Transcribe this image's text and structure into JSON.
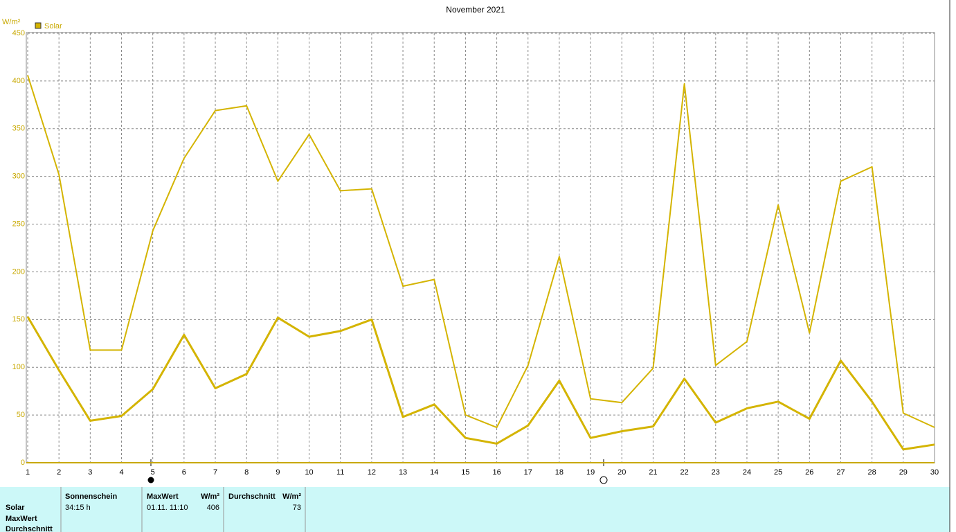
{
  "chart_data": {
    "type": "line",
    "title": "November 2021",
    "y_label": "W/m²",
    "x": [
      1,
      2,
      3,
      4,
      5,
      6,
      7,
      8,
      9,
      10,
      11,
      12,
      13,
      14,
      15,
      16,
      17,
      18,
      19,
      20,
      21,
      22,
      23,
      24,
      25,
      26,
      27,
      28,
      29,
      30
    ],
    "xlim": [
      1,
      30
    ],
    "xticks": [
      1,
      2,
      3,
      4,
      5,
      6,
      7,
      8,
      9,
      10,
      11,
      12,
      13,
      14,
      15,
      16,
      17,
      18,
      19,
      20,
      21,
      22,
      23,
      24,
      25,
      26,
      27,
      28,
      29,
      30
    ],
    "ylim": [
      0,
      450
    ],
    "yticks": [
      0,
      50,
      100,
      150,
      200,
      250,
      300,
      350,
      400,
      450
    ],
    "grid": true,
    "series": [
      {
        "name": "Solar",
        "color": "#d4b400",
        "values": [
          406,
          302,
          118,
          118,
          243,
          319,
          369,
          374,
          295,
          344,
          285,
          287,
          185,
          192,
          50,
          37,
          102,
          216,
          67,
          63,
          99,
          397,
          102,
          127,
          270,
          136,
          295,
          310,
          52,
          37
        ]
      },
      {
        "color": "#d4b400",
        "values": [
          153,
          97,
          44,
          49,
          77,
          134,
          78,
          93,
          152,
          132,
          138,
          150,
          48,
          61,
          26,
          20,
          39,
          86,
          26,
          33,
          38,
          88,
          42,
          57,
          64,
          46,
          107,
          64,
          14,
          19
        ]
      }
    ]
  },
  "summary": {
    "row_labels": [
      "Solar",
      "MaxWert",
      "Durchschnitt"
    ],
    "columns": [
      {
        "header": "Sonnenschein",
        "value": "34:15 h"
      },
      {
        "header": "MaxWert",
        "unit": "W/m²",
        "date": "01.11.  11:10",
        "value": "406"
      },
      {
        "header": "Durchschnitt",
        "unit": "W/m²",
        "value": "73"
      }
    ]
  }
}
